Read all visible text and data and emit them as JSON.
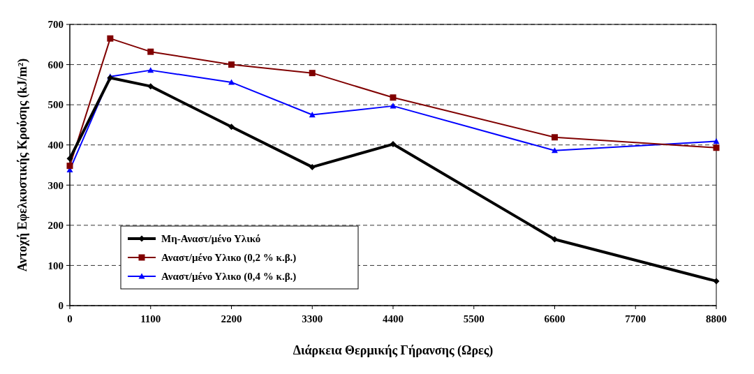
{
  "chart_data": {
    "type": "line",
    "xlabel": "Διάρκεια Θερμικής Γήρανσης (Ωρες)",
    "ylabel": "Αντοχή Εφελκυστικής Κρούσης (kJ/m²)",
    "xlim": [
      0,
      8800
    ],
    "xticks": [
      0,
      1100,
      2200,
      3300,
      4400,
      5500,
      6600,
      7700,
      8800
    ],
    "ylim": [
      0,
      700
    ],
    "yticks": [
      0,
      100,
      200,
      300,
      400,
      500,
      600,
      700
    ],
    "grid": "y",
    "legend": "bottom left",
    "line_style": "solid",
    "x": [
      0,
      550,
      1100,
      2200,
      3300,
      4400,
      6600,
      8800
    ],
    "series": [
      {
        "name": "Μη-Αναστ/μένο Υλικό",
        "color": "#000000",
        "marker": "diamond",
        "values": [
          366,
          567,
          546,
          445,
          345,
          402,
          165,
          61
        ]
      },
      {
        "name": "Αναστ/μένο Υλικο (0,2 % κ.β.)",
        "color": "#800000",
        "marker": "square",
        "values": [
          348,
          665,
          632,
          600,
          579,
          518,
          419,
          393
        ]
      },
      {
        "name": "Αναστ/μένο Υλικο (0,4 % κ.β.)",
        "color": "#0000ff",
        "marker": "triangle",
        "values": [
          338,
          570,
          586,
          556,
          475,
          497,
          386,
          409
        ]
      }
    ]
  }
}
